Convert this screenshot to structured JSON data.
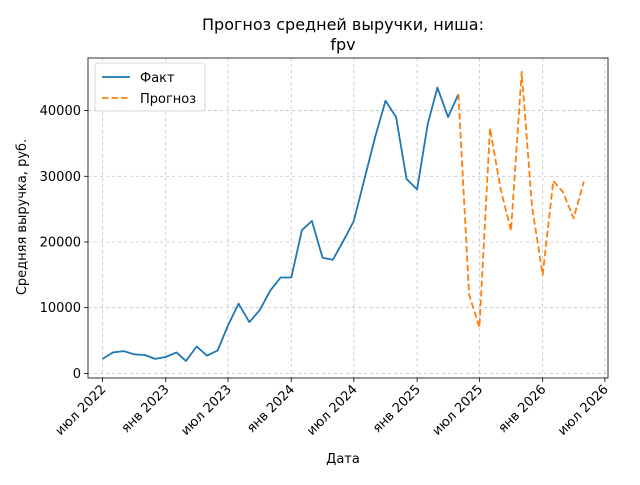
{
  "chart_data": {
    "type": "line",
    "title": "Прогноз средней выручки, ниша:",
    "subtitle": "fpv",
    "xlabel": "Дата",
    "ylabel": "Средняя выручка, руб.",
    "x_range": [
      "2022-05-20",
      "2026-07-10"
    ],
    "ylim": [
      -700,
      48000
    ],
    "yticks": [
      0,
      10000,
      20000,
      30000,
      40000
    ],
    "xticks": [
      {
        "date": "2022-07-01",
        "label": "июл 2022"
      },
      {
        "date": "2023-01-01",
        "label": "янв 2023"
      },
      {
        "date": "2023-07-01",
        "label": "июл 2023"
      },
      {
        "date": "2024-01-01",
        "label": "янв 2024"
      },
      {
        "date": "2024-07-01",
        "label": "июл 2024"
      },
      {
        "date": "2025-01-01",
        "label": "янв 2025"
      },
      {
        "date": "2025-07-01",
        "label": "июл 2025"
      },
      {
        "date": "2026-01-01",
        "label": "янв 2026"
      },
      {
        "date": "2026-07-01",
        "label": "июл 2026"
      }
    ],
    "grid": true,
    "legend_position": "top-left",
    "series": [
      {
        "name": "Факт",
        "style": "solid",
        "color": "#1f77b4",
        "x": [
          "2022-07-01",
          "2022-08-01",
          "2022-09-01",
          "2022-10-01",
          "2022-11-01",
          "2022-12-01",
          "2023-01-01",
          "2023-02-01",
          "2023-03-01",
          "2023-04-01",
          "2023-05-01",
          "2023-06-01",
          "2023-07-01",
          "2023-08-01",
          "2023-09-01",
          "2023-10-01",
          "2023-11-01",
          "2023-12-01",
          "2024-01-01",
          "2024-02-01",
          "2024-03-01",
          "2024-04-01",
          "2024-05-01",
          "2024-06-01",
          "2024-07-01",
          "2024-08-01",
          "2024-09-01",
          "2024-10-01",
          "2024-11-01",
          "2024-12-01",
          "2025-01-01",
          "2025-02-01",
          "2025-03-01",
          "2025-04-01",
          "2025-05-01"
        ],
        "y": [
          2200,
          3200,
          3400,
          2900,
          2800,
          2200,
          2500,
          3200,
          1900,
          4100,
          2700,
          3500,
          7300,
          10600,
          7800,
          9600,
          12600,
          14600,
          14600,
          21800,
          23200,
          17600,
          17300,
          20200,
          23200,
          29600,
          36000,
          41500,
          39000,
          29600,
          28000,
          38000,
          43500,
          39000,
          42500
        ]
      },
      {
        "name": "Прогноз",
        "style": "dashed",
        "color": "#ff7f0e",
        "x": [
          "2025-05-01",
          "2025-06-01",
          "2025-07-01",
          "2025-08-01",
          "2025-09-01",
          "2025-10-01",
          "2025-11-01",
          "2025-12-01",
          "2026-01-01",
          "2026-02-01",
          "2026-03-01",
          "2026-04-01",
          "2026-05-01"
        ],
        "y": [
          42500,
          12000,
          7000,
          37300,
          28000,
          21700,
          45900,
          25400,
          15000,
          29300,
          27600,
          23600,
          29200
        ]
      }
    ]
  }
}
